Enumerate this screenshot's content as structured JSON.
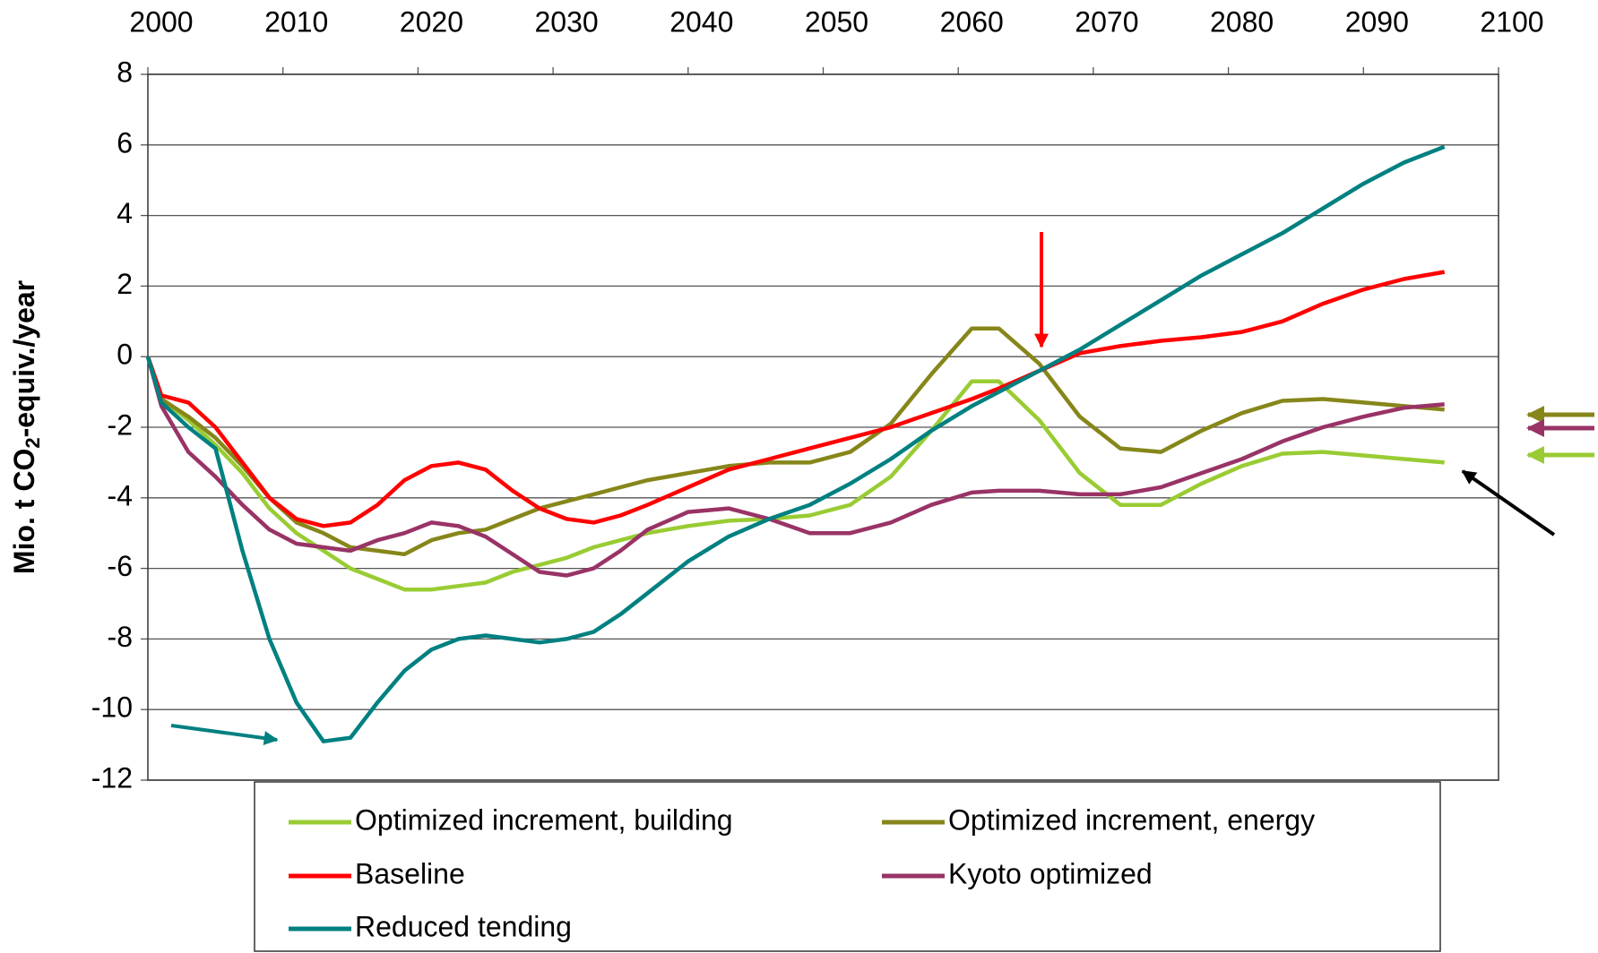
{
  "chart_data": {
    "type": "line",
    "y_label": [
      "Mio. t CO",
      "2",
      "-equiv./year"
    ],
    "x": [
      2000,
      2001,
      2003,
      2005,
      2007,
      2009,
      2011,
      2013,
      2015,
      2017,
      2019,
      2021,
      2023,
      2025,
      2027,
      2029,
      2031,
      2033,
      2035,
      2037,
      2040,
      2043,
      2046,
      2049,
      2052,
      2055,
      2058,
      2061,
      2063,
      2066,
      2069,
      2072,
      2075,
      2078,
      2081,
      2084,
      2087,
      2090,
      2093,
      2096
    ],
    "xlim": [
      2000,
      2100
    ],
    "xticks": [
      2000,
      2010,
      2020,
      2030,
      2040,
      2050,
      2060,
      2070,
      2080,
      2090,
      2100
    ],
    "ylim": [
      -12,
      8
    ],
    "yticks": [
      -12,
      -10,
      -8,
      -6,
      -4,
      -2,
      0,
      2,
      4,
      6,
      8
    ],
    "grid": true,
    "series": [
      {
        "name": "Optimized increment, building",
        "color": "#99cc33",
        "values": [
          0,
          -1.2,
          -1.8,
          -2.5,
          -3.3,
          -4.3,
          -5.0,
          -5.5,
          -6.0,
          -6.3,
          -6.6,
          -6.6,
          -6.5,
          -6.4,
          -6.1,
          -5.9,
          -5.7,
          -5.4,
          -5.2,
          -5.0,
          -4.8,
          -4.65,
          -4.6,
          -4.5,
          -4.2,
          -3.4,
          -2.1,
          -0.7,
          -0.7,
          -1.8,
          -3.3,
          -4.2,
          -4.2,
          -3.6,
          -3.1,
          -2.75,
          -2.7,
          -2.8,
          -2.9,
          -3.0
        ]
      },
      {
        "name": "Optimized increment, energy",
        "color": "#86861a",
        "values": [
          0,
          -1.2,
          -1.7,
          -2.3,
          -3.1,
          -4.0,
          -4.7,
          -5.0,
          -5.4,
          -5.5,
          -5.6,
          -5.2,
          -5.0,
          -4.9,
          -4.6,
          -4.3,
          -4.1,
          -3.9,
          -3.7,
          -3.5,
          -3.3,
          -3.1,
          -3.0,
          -3.0,
          -2.7,
          -1.9,
          -0.5,
          0.8,
          0.8,
          -0.2,
          -1.7,
          -2.6,
          -2.7,
          -2.1,
          -1.6,
          -1.25,
          -1.2,
          -1.3,
          -1.4,
          -1.5
        ]
      },
      {
        "name": "Baseline",
        "color": "#ff0000",
        "values": [
          0,
          -1.1,
          -1.3,
          -2.0,
          -3.0,
          -4.0,
          -4.6,
          -4.8,
          -4.7,
          -4.2,
          -3.5,
          -3.1,
          -3.0,
          -3.2,
          -3.8,
          -4.3,
          -4.6,
          -4.7,
          -4.5,
          -4.2,
          -3.7,
          -3.2,
          -2.9,
          -2.6,
          -2.3,
          -2.0,
          -1.6,
          -1.2,
          -0.9,
          -0.4,
          0.1,
          0.3,
          0.45,
          0.55,
          0.7,
          1.0,
          1.5,
          1.9,
          2.2,
          2.4
        ]
      },
      {
        "name": "Kyoto optimized",
        "color": "#993366",
        "values": [
          0,
          -1.4,
          -2.7,
          -3.4,
          -4.2,
          -4.9,
          -5.3,
          -5.4,
          -5.5,
          -5.2,
          -5.0,
          -4.7,
          -4.8,
          -5.1,
          -5.6,
          -6.1,
          -6.2,
          -6.0,
          -5.5,
          -4.9,
          -4.4,
          -4.3,
          -4.6,
          -5.0,
          -5.0,
          -4.7,
          -4.2,
          -3.85,
          -3.8,
          -3.8,
          -3.9,
          -3.9,
          -3.7,
          -3.3,
          -2.9,
          -2.4,
          -2.0,
          -1.7,
          -1.45,
          -1.35
        ]
      },
      {
        "name": "Reduced tending",
        "color": "#008080",
        "values": [
          0,
          -1.3,
          -2.0,
          -2.6,
          -5.5,
          -8.0,
          -9.8,
          -10.9,
          -10.8,
          -9.8,
          -8.9,
          -8.3,
          -8.0,
          -7.9,
          -8.0,
          -8.1,
          -8.0,
          -7.8,
          -7.3,
          -6.7,
          -5.8,
          -5.1,
          -4.6,
          -4.2,
          -3.6,
          -2.9,
          -2.1,
          -1.4,
          -1.0,
          -0.4,
          0.2,
          0.9,
          1.6,
          2.3,
          2.9,
          3.5,
          4.2,
          4.9,
          5.5,
          5.95
        ]
      }
    ]
  }
}
